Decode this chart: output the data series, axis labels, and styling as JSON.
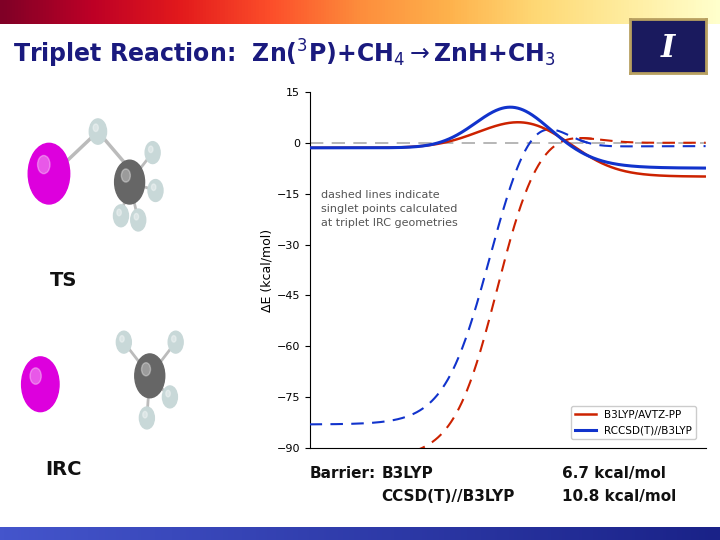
{
  "bg_color": "#ffffff",
  "top_bar_color1": "#ff4400",
  "top_bar_color2": "#ff8844",
  "bottom_bar_color": "#2233aa",
  "ylabel": "ΔE (kcal/mol)",
  "ylim": [
    -90,
    15
  ],
  "yticks": [
    15,
    0,
    -15,
    -30,
    -45,
    -60,
    -75,
    -90
  ],
  "annotation_text": "dashed lines indicate\nsinglet points calculated\nat triplet IRC geometries",
  "legend_b3lyp": "B3LYP/AVTZ-PP",
  "legend_rccsd": "RCCSD(T)//B3LYP",
  "red_color": "#cc2200",
  "blue_color": "#1133cc",
  "title_color": "#1a1a7e",
  "ts_label": "TS",
  "irc_label": "IRC",
  "barrier_label": "Barrier:",
  "b3lyp_barrier": "B3LYP",
  "b3lyp_value": "6.7 kcal/mol",
  "ccsd_barrier": "CCSD(T)//B3LYP",
  "ccsd_value": "10.8 kcal/mol",
  "logo_text": "I",
  "logo_bg": "#1a1a5e",
  "logo_border": "#b8a060"
}
